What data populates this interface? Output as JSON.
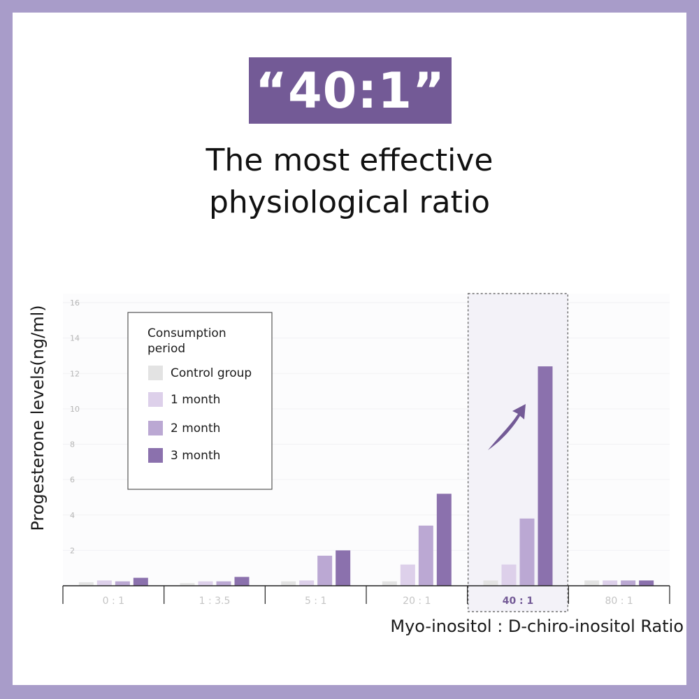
{
  "header": {
    "badge": "“40:1”",
    "headline_line1": "The most effective",
    "headline_line2": "physiological ratio"
  },
  "colors": {
    "frame": "#a89cc9",
    "badge": "#735a96",
    "control": "#e3e3e3",
    "m1": "#ddd0ea",
    "m2": "#bba8d3",
    "m3": "#8b71ad",
    "arrow": "#735a96"
  },
  "chart_data": {
    "type": "bar",
    "ylabel": "Progesterone levels(ng/ml)",
    "xlabel": "Myo-inositol : D-chiro-inositol Ratio",
    "ylim": [
      0,
      16
    ],
    "yticks": [
      2,
      4,
      6,
      8,
      10,
      12,
      14,
      16
    ],
    "categories": [
      "0 : 1",
      "1 : 3.5",
      "5 : 1",
      "20 : 1",
      "40 : 1",
      "80 : 1"
    ],
    "highlighted_category": "40 : 1",
    "legend": {
      "title_line1": "Consumption",
      "title_line2": "period",
      "placement": "top-left"
    },
    "series": [
      {
        "name": "Control group",
        "color": "#e3e3e3",
        "values": [
          0.2,
          0.15,
          0.25,
          0.25,
          0.3,
          0.3
        ]
      },
      {
        "name": "1 month",
        "color": "#ddd0ea",
        "values": [
          0.3,
          0.25,
          0.3,
          1.2,
          1.2,
          0.3
        ]
      },
      {
        "name": "2 month",
        "color": "#bba8d3",
        "values": [
          0.25,
          0.25,
          1.7,
          3.4,
          3.8,
          0.3
        ]
      },
      {
        "name": "3 month",
        "color": "#8b71ad",
        "values": [
          0.45,
          0.5,
          2.0,
          5.2,
          12.4,
          0.3
        ]
      }
    ]
  }
}
